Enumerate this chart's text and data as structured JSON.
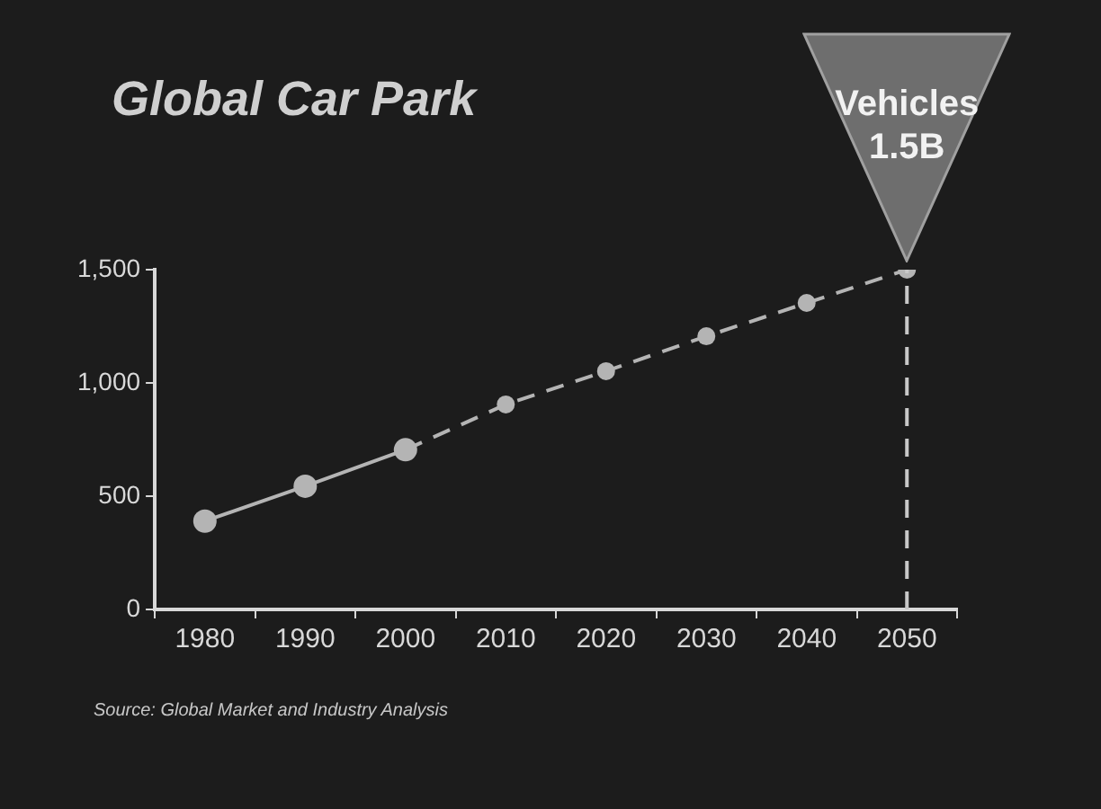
{
  "chart_data": {
    "type": "line",
    "title": "Global Car Park",
    "categories": [
      "1980",
      "1990",
      "2000",
      "2010",
      "2020",
      "2030",
      "2040",
      "2050"
    ],
    "series": [
      {
        "color": "#b4b4b4",
        "values": [
          390,
          544,
          705,
          null,
          null,
          null,
          null,
          null
        ],
        "line_style": "solid"
      },
      {
        "color": "#b4b4b4",
        "values": [
          null,
          null,
          705,
          905,
          1052,
          1206,
          1353,
          1500
        ],
        "line_style": "dashed"
      }
    ],
    "ylim": [
      0,
      1500
    ],
    "yticks": [
      0,
      500,
      {
        "value": 1000,
        "label": "1,000"
      },
      {
        "value": 1500,
        "label": "1,500"
      }
    ],
    "grid": false,
    "legend": false,
    "marker": "circle",
    "ref_lines": [
      {
        "axis": "x",
        "value": "2050",
        "line_style": "dashed",
        "color": "#c8c8c8"
      }
    ],
    "annotations": [
      {
        "text": "Vehicles 1.5B",
        "x": "2050",
        "y": 1500
      },
      "Source: Global Market and Industry Analysis"
    ]
  }
}
